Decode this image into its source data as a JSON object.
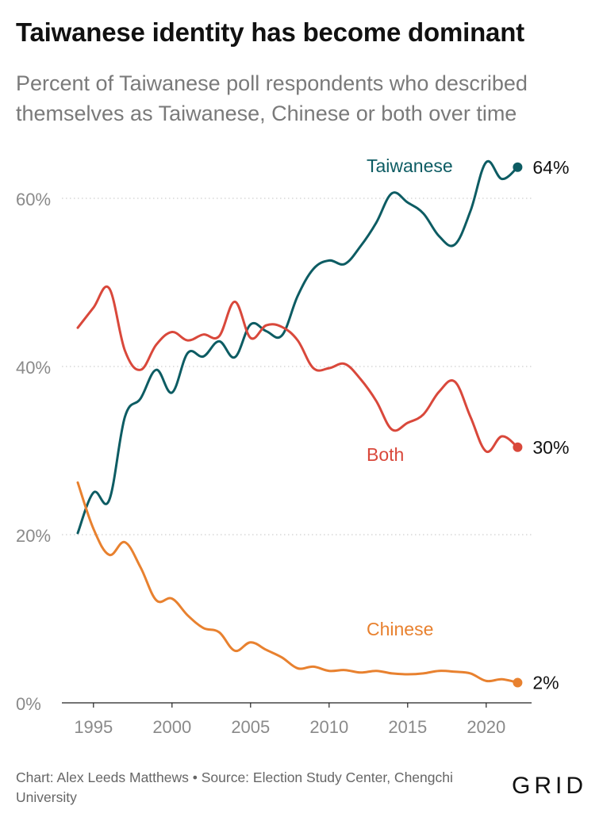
{
  "title": "Taiwanese identity has become dominant",
  "subtitle": "Percent of Taiwanese poll respondents who described themselves as Taiwanese, Chinese or both over time",
  "footer": {
    "credit": "Chart: Alex Leeds Matthews • Source: Election Study Center, Chengchi University",
    "logo": "GRID"
  },
  "chart_data": {
    "type": "line",
    "title": "Taiwanese identity has become dominant",
    "subtitle": "Percent of Taiwanese poll respondents who described themselves as Taiwanese, Chinese or both over time",
    "xlabel": "",
    "ylabel": "",
    "xlim": [
      1993.5,
      2022.5
    ],
    "ylim": [
      0,
      64
    ],
    "x_ticks": [
      1995,
      2000,
      2005,
      2010,
      2015,
      2020
    ],
    "x_tick_labels": [
      "1995",
      "2000",
      "2005",
      "2010",
      "2015",
      "2020"
    ],
    "y_ticks": [
      0,
      20,
      40,
      60
    ],
    "y_tick_labels": [
      "0%",
      "20%",
      "40%",
      "60%"
    ],
    "grid": "horizontal dotted",
    "x": [
      1994,
      1995,
      1996,
      1997,
      1998,
      1999,
      2000,
      2001,
      2002,
      2003,
      2004,
      2005,
      2006,
      2007,
      2008,
      2009,
      2010,
      2011,
      2012,
      2013,
      2014,
      2015,
      2016,
      2017,
      2018,
      2019,
      2020,
      2021,
      2022
    ],
    "series": [
      {
        "name": "Taiwanese",
        "color": "#0d5c63",
        "end_label": "64%",
        "values": [
          20.2,
          25.0,
          24.1,
          34.0,
          36.2,
          39.6,
          36.9,
          41.6,
          41.2,
          43.0,
          41.1,
          45.0,
          44.2,
          43.7,
          48.4,
          51.6,
          52.6,
          52.2,
          54.3,
          57.1,
          60.6,
          59.5,
          58.2,
          55.5,
          54.5,
          58.5,
          64.3,
          62.3,
          63.7
        ]
      },
      {
        "name": "Both",
        "color": "#d9483b",
        "end_label": "30%",
        "values": [
          44.6,
          47.0,
          49.3,
          41.9,
          39.6,
          42.6,
          44.1,
          43.1,
          43.8,
          43.6,
          47.7,
          43.4,
          44.9,
          44.7,
          43.1,
          39.8,
          39.8,
          40.3,
          38.5,
          35.9,
          32.5,
          33.3,
          34.3,
          37.0,
          38.2,
          34.0,
          29.9,
          31.7,
          30.4
        ]
      },
      {
        "name": "Chinese",
        "color": "#e8812f",
        "end_label": "2%",
        "values": [
          26.2,
          20.7,
          17.6,
          19.1,
          16.1,
          12.2,
          12.4,
          10.4,
          8.9,
          8.4,
          6.2,
          7.2,
          6.3,
          5.4,
          4.1,
          4.3,
          3.8,
          3.9,
          3.6,
          3.8,
          3.5,
          3.4,
          3.5,
          3.8,
          3.7,
          3.5,
          2.6,
          2.8,
          2.4
        ]
      }
    ],
    "annotations": [
      {
        "text": "Taiwanese",
        "series": "Taiwanese"
      },
      {
        "text": "Both",
        "series": "Both"
      },
      {
        "text": "Chinese",
        "series": "Chinese"
      }
    ]
  }
}
